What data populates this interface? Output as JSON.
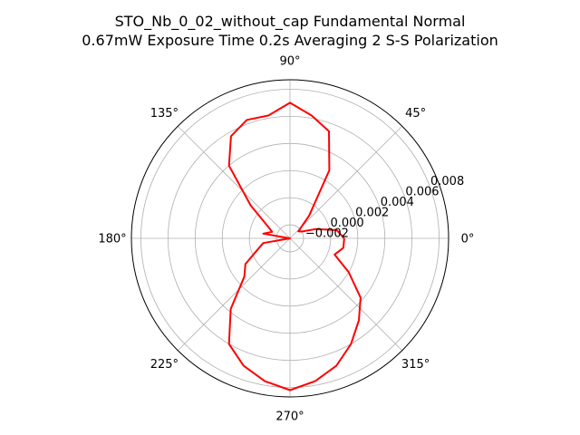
{
  "chart_data": {
    "type": "polar-line",
    "title": [
      "STO_Nb_0_02_without_cap Fundamental Normal",
      "0.67mW Exposure Time 0.2s Averaging 2 S-S  Polarization"
    ],
    "angle_ticks": [
      "0°",
      "45°",
      "90°",
      "135°",
      "180°",
      "225°",
      "270°",
      "315°"
    ],
    "radial_ticks": [
      "−0.002",
      "0.000",
      "0.002",
      "0.004",
      "0.006",
      "0.008"
    ],
    "rlim": [
      -0.003,
      0.0087
    ],
    "grid": true,
    "series": [
      {
        "color": "#ff0000",
        "angles_deg": [
          0,
          10,
          20,
          30,
          40,
          50,
          60,
          70,
          80,
          90,
          100,
          110,
          120,
          130,
          140,
          150,
          160,
          170,
          180,
          190,
          200,
          210,
          220,
          230,
          240,
          250,
          260,
          270,
          280,
          290,
          300,
          310,
          320,
          330,
          340,
          350,
          360
        ],
        "values": [
          0.001,
          0.0005,
          -0.001,
          -0.002,
          -0.0022,
          -0.0008,
          0.0028,
          0.0054,
          0.0062,
          0.007,
          0.0062,
          0.0063,
          0.0057,
          0.004,
          0.0008,
          -0.001,
          -0.0016,
          -0.001,
          -0.003,
          -0.001,
          -0.0004,
          0.0008,
          0.0014,
          0.0038,
          0.006,
          0.007,
          0.0077,
          0.0082,
          0.0077,
          0.007,
          0.006,
          0.0049,
          0.0038,
          0.002,
          0.0005,
          0.001,
          0.001
        ]
      }
    ]
  }
}
